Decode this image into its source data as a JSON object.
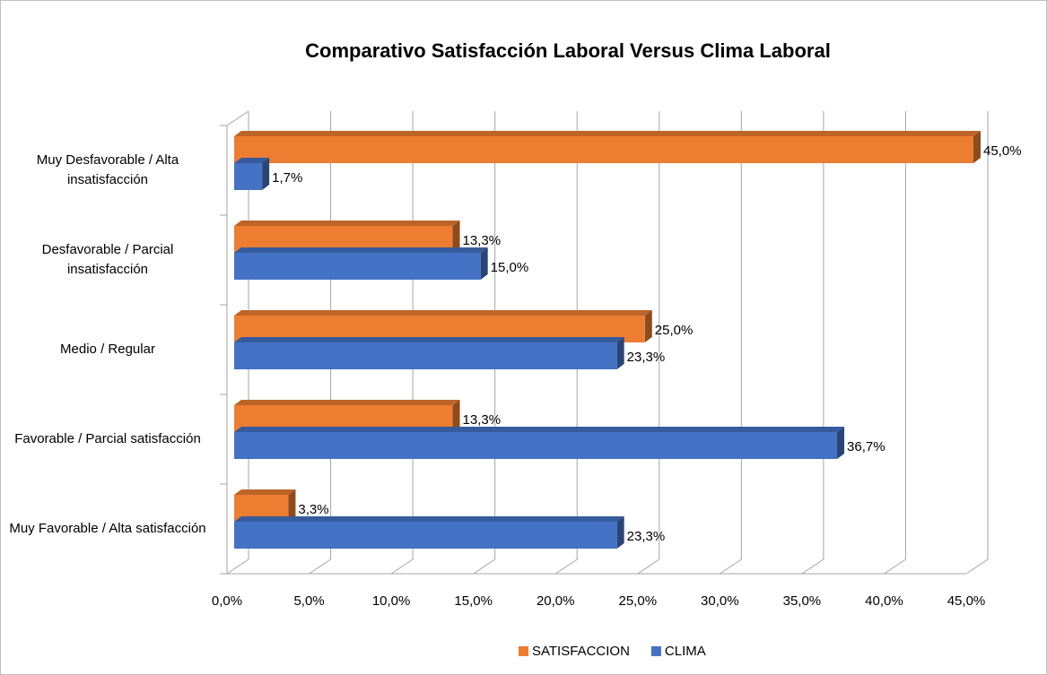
{
  "chart_data": {
    "type": "bar3d-horizontal",
    "title": "Comparativo Satisfacción Laboral  Versus Clima Laboral",
    "categories": [
      "Muy Desfavorable / Alta insatisfacción",
      "Desfavorable / Parcial insatisfacción",
      "Medio / Regular",
      "Favorable  / Parcial satisfacción",
      "Muy Favorable / Alta satisfacción"
    ],
    "series": [
      {
        "name": "SATISFACCION",
        "color": "#ED7D31",
        "values": [
          45.0,
          13.3,
          25.0,
          13.3,
          3.3
        ],
        "value_labels": [
          "45,0%",
          "13,3%",
          "25,0%",
          "13,3%",
          "3,3%"
        ]
      },
      {
        "name": "CLIMA",
        "color": "#4472C4",
        "values": [
          1.7,
          15.0,
          23.3,
          36.7,
          23.3
        ],
        "value_labels": [
          "1,7%",
          "15,0%",
          "23,3%",
          "36,7%",
          "23,3%"
        ]
      }
    ],
    "xlim": [
      0,
      45
    ],
    "xticks": [
      {
        "value": 0,
        "label": "0,0%"
      },
      {
        "value": 5,
        "label": "5,0%"
      },
      {
        "value": 10,
        "label": "10,0%"
      },
      {
        "value": 15,
        "label": "15,0%"
      },
      {
        "value": 20,
        "label": "20,0%"
      },
      {
        "value": 25,
        "label": "25,0%"
      },
      {
        "value": 30,
        "label": "30,0%"
      },
      {
        "value": 35,
        "label": "35,0%"
      },
      {
        "value": 40,
        "label": "40,0%"
      },
      {
        "value": 45,
        "label": "45,0%"
      }
    ],
    "grid": true,
    "legend": "bottom"
  }
}
